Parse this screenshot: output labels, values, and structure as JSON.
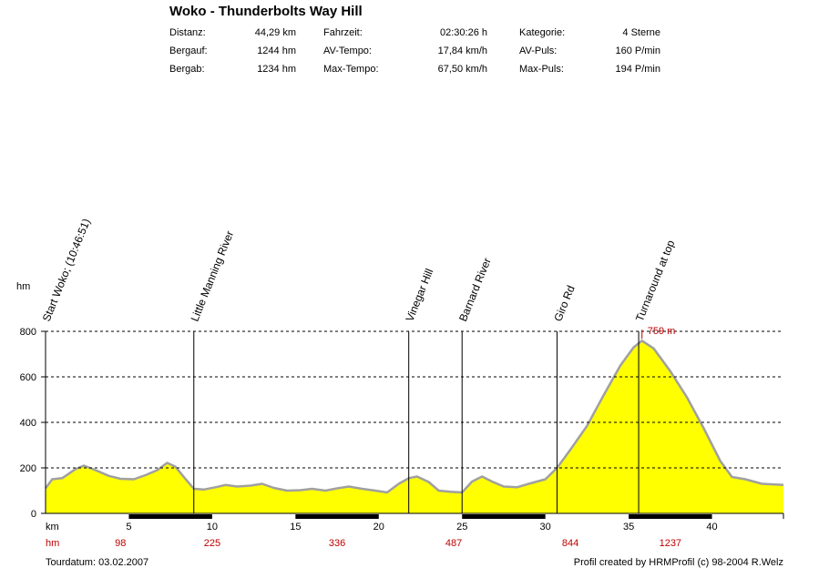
{
  "title": "Woko - Thunderbolts Way Hill",
  "stats": [
    [
      {
        "label": "Distanz:",
        "value": "44,29 km"
      },
      {
        "label": "Fahrzeit:",
        "value": "02:30:26 h"
      },
      {
        "label": "Kategorie:",
        "value": "4 Sterne"
      }
    ],
    [
      {
        "label": "Bergauf:",
        "value": "1244 hm"
      },
      {
        "label": "AV-Tempo:",
        "value": "17,84 km/h"
      },
      {
        "label": "AV-Puls:",
        "value": "160 P/min"
      }
    ],
    [
      {
        "label": "Bergab:",
        "value": "1234 hm"
      },
      {
        "label": "Max-Tempo:",
        "value": "67,50 km/h"
      },
      {
        "label": "Max-Puls:",
        "value": "194 P/min"
      }
    ]
  ],
  "footer": {
    "tourdatum": "Tourdatum: 03.02.2007",
    "credit": "Profil created by HRMProfil (c) 98-2004 R.Welz"
  },
  "colors": {
    "fill": "#ffff00",
    "outline": "#a0a0a0",
    "accent": "#c00000"
  },
  "chart_data": {
    "type": "area",
    "ylabel": "hm",
    "xlabel": "km",
    "hm_row_label": "hm",
    "xlim": [
      0,
      44.29
    ],
    "ylim": [
      0,
      800
    ],
    "yticks": [
      0,
      200,
      400,
      600,
      800
    ],
    "xticks": [
      5,
      10,
      15,
      20,
      25,
      30,
      35,
      40
    ],
    "grid": "horizontal dashed",
    "max_label": "759 m",
    "max_point": [
      35.8,
      759
    ],
    "hm_markers": [
      {
        "km": 4.5,
        "hm": "98"
      },
      {
        "km": 10.0,
        "hm": "225"
      },
      {
        "km": 17.5,
        "hm": "336"
      },
      {
        "km": 24.5,
        "hm": "487"
      },
      {
        "km": 31.5,
        "hm": "844"
      },
      {
        "km": 37.5,
        "hm": "1237"
      }
    ],
    "waypoints": [
      {
        "km": 0.0,
        "label": "Start Woko; (10:46:51)"
      },
      {
        "km": 8.9,
        "label": "Little Manning River"
      },
      {
        "km": 21.8,
        "label": "Vinegar Hill"
      },
      {
        "km": 25.0,
        "label": "Barnard River"
      },
      {
        "km": 30.7,
        "label": "Giro Rd"
      },
      {
        "km": 35.6,
        "label": "Turnaround at top"
      }
    ],
    "profile": [
      [
        0,
        110
      ],
      [
        0.4,
        150
      ],
      [
        1,
        155
      ],
      [
        1.8,
        195
      ],
      [
        2.3,
        210
      ],
      [
        3,
        190
      ],
      [
        3.8,
        165
      ],
      [
        4.5,
        152
      ],
      [
        5.3,
        150
      ],
      [
        6,
        168
      ],
      [
        6.7,
        190
      ],
      [
        7.3,
        222
      ],
      [
        7.8,
        205
      ],
      [
        8.3,
        160
      ],
      [
        8.9,
        108
      ],
      [
        9.5,
        105
      ],
      [
        10.2,
        115
      ],
      [
        10.8,
        125
      ],
      [
        11.5,
        118
      ],
      [
        12.3,
        122
      ],
      [
        13,
        130
      ],
      [
        13.7,
        112
      ],
      [
        14.5,
        100
      ],
      [
        15.3,
        102
      ],
      [
        16,
        108
      ],
      [
        16.8,
        100
      ],
      [
        17.5,
        110
      ],
      [
        18.2,
        118
      ],
      [
        19,
        108
      ],
      [
        19.8,
        100
      ],
      [
        20.5,
        92
      ],
      [
        21.2,
        130
      ],
      [
        21.8,
        155
      ],
      [
        22.3,
        162
      ],
      [
        23,
        138
      ],
      [
        23.6,
        100
      ],
      [
        24.3,
        95
      ],
      [
        25.0,
        92
      ],
      [
        25.6,
        140
      ],
      [
        26.2,
        162
      ],
      [
        26.8,
        140
      ],
      [
        27.5,
        118
      ],
      [
        28.3,
        115
      ],
      [
        29,
        130
      ],
      [
        30,
        150
      ],
      [
        30.7,
        200
      ],
      [
        31.5,
        280
      ],
      [
        32.5,
        385
      ],
      [
        33.5,
        520
      ],
      [
        34.5,
        650
      ],
      [
        35.3,
        730
      ],
      [
        35.8,
        759
      ],
      [
        36.5,
        725
      ],
      [
        37.5,
        625
      ],
      [
        38.5,
        510
      ],
      [
        39.5,
        375
      ],
      [
        40.5,
        230
      ],
      [
        41.2,
        160
      ],
      [
        42,
        150
      ],
      [
        43,
        130
      ],
      [
        44.29,
        125
      ]
    ]
  }
}
